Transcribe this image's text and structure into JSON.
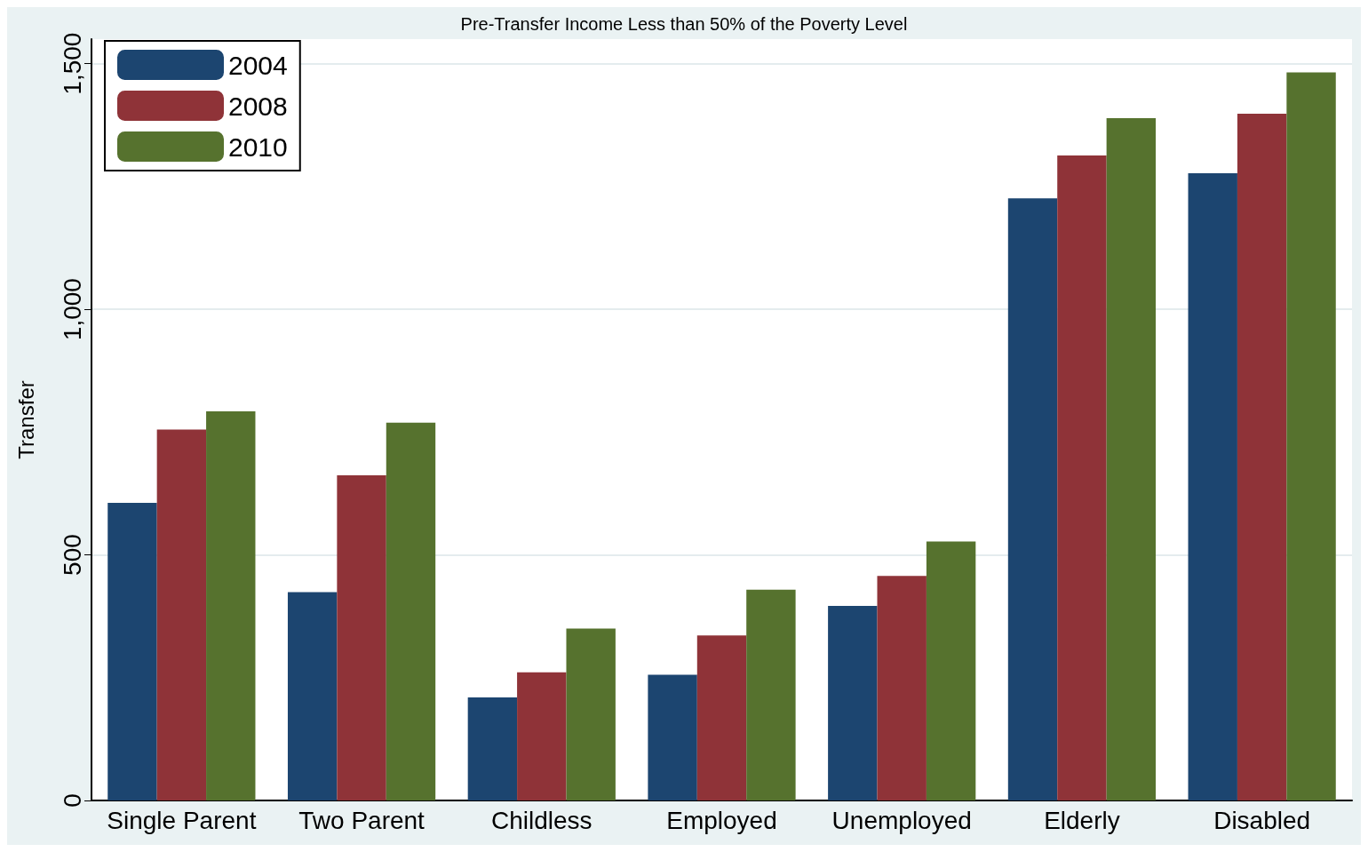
{
  "chart_data": {
    "type": "bar",
    "title": "Pre-Transfer Income Less than 50% of the Poverty Level",
    "ylabel": "Transfer",
    "categories": [
      "Single Parent",
      "Two Parent",
      "Childless",
      "Employed",
      "Unemployed",
      "Elderly",
      "Disabled"
    ],
    "series": [
      {
        "name": "2004",
        "color": "#1c4570",
        "values": [
          606,
          424,
          210,
          256,
          396,
          1226,
          1277
        ]
      },
      {
        "name": "2008",
        "color": "#8f3338",
        "values": [
          755,
          662,
          261,
          336,
          457,
          1313,
          1398
        ]
      },
      {
        "name": "2010",
        "color": "#56722e",
        "values": [
          792,
          769,
          350,
          429,
          527,
          1389,
          1482
        ]
      }
    ],
    "ylim": [
      0,
      1550
    ],
    "yticks": [
      {
        "value": 0,
        "label": "0"
      },
      {
        "value": 500,
        "label": "500"
      },
      {
        "value": 1000,
        "label": "1,000"
      },
      {
        "value": 1500,
        "label": "1,500"
      }
    ],
    "grid": "y",
    "legend": "top left"
  }
}
